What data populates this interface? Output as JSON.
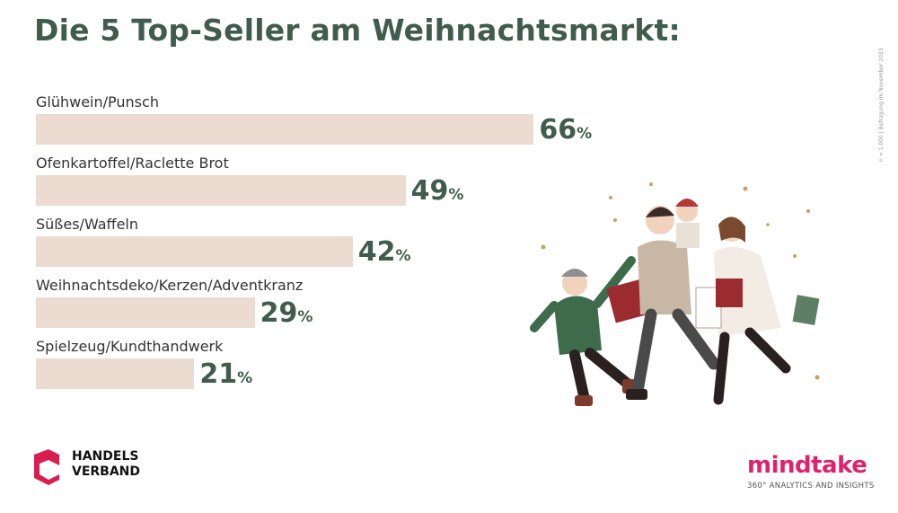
{
  "title": "Die 5 Top-Seller am Weihnachtsmarkt:",
  "side_note": "n = 1.000 | Befragung im November 2023",
  "chart_data": {
    "type": "bar",
    "orientation": "horizontal",
    "categories": [
      "Glühwein/Punsch",
      "Ofenkartoffel/Raclette Brot",
      "Süßes/Waffeln",
      "Weihnachtsdeko/Kerzen/Adventkranz",
      "Spielzeug/Kundthandwerk"
    ],
    "values": [
      66,
      49,
      42,
      29,
      21
    ],
    "unit": "%",
    "bar_color": "#ebdbd0",
    "value_color": "#3f5c4c",
    "xlim": [
      0,
      100
    ],
    "grid": false,
    "legend": "none"
  },
  "logos": {
    "handelsverband": {
      "line1": "HANDELS",
      "line2": "VERBAND",
      "color": "#d81e50"
    },
    "mindtake": {
      "name": "mindtake",
      "tagline": "360° ANALYTICS AND INSIGHTS",
      "color": "#e0226e"
    }
  },
  "illustration": {
    "icon": "christmas-shoppers-illustration"
  }
}
